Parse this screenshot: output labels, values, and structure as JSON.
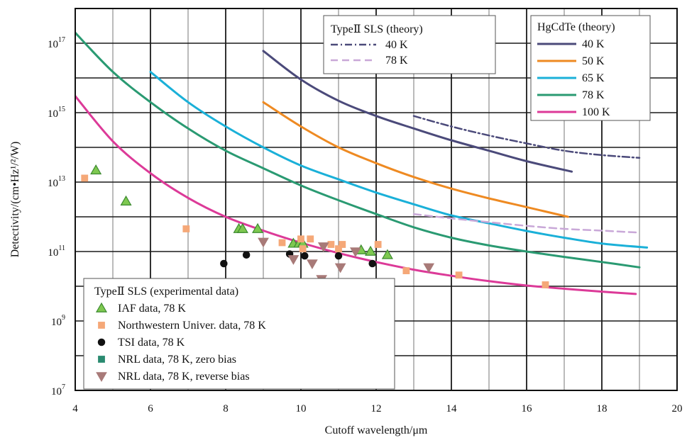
{
  "chart_data": {
    "type": "line",
    "xlabel": "Cutoff wavelength/μm",
    "ylabel": "Detectivity/(cm•Hz¹/²/W)",
    "xlim": [
      4,
      20
    ],
    "ylim": [
      10000000.0,
      1e+18
    ],
    "y_scale": "log",
    "x_ticks": [
      "4",
      "6",
      "8",
      "10",
      "12",
      "14",
      "16",
      "18",
      "20"
    ],
    "y_ticks": [
      {
        "base": "10",
        "exp": "7",
        "value": 10000000.0
      },
      {
        "base": "10",
        "exp": "9",
        "value": 1000000000.0
      },
      {
        "base": "10",
        "exp": "11",
        "value": 100000000000.0
      },
      {
        "base": "10",
        "exp": "13",
        "value": 10000000000000.0
      },
      {
        "base": "10",
        "exp": "15",
        "value": 1000000000000000.0
      },
      {
        "base": "10",
        "exp": "17",
        "value": 1e+17
      }
    ],
    "grid": true,
    "theory_series": [
      {
        "group": "HgCdTe (theory)",
        "name": "40 K",
        "color": "#4b4a7a",
        "dash": "",
        "x": [
          9.0,
          10.0,
          11.0,
          12.0,
          13.0,
          14.0,
          15.0,
          16.0,
          17.2
        ],
        "y": [
          6e+16,
          9000000000000000.0,
          2200000000000000.0,
          800000000000000.0,
          350000000000000.0,
          160000000000000.0,
          80000000000000.0,
          40000000000000.0,
          20000000000000.0
        ]
      },
      {
        "group": "HgCdTe (theory)",
        "name": "50 K",
        "color": "#ee8a22",
        "dash": "",
        "x": [
          9.0,
          10.0,
          11.0,
          12.0,
          13.0,
          14.0,
          15.0,
          16.0,
          17.1
        ],
        "y": [
          2000000000000000.0,
          400000000000000.0,
          100000000000000.0,
          35000000000000.0,
          14000000000000.0,
          6500000000000.0,
          3400000000000.0,
          1900000000000.0,
          1000000000000.0
        ]
      },
      {
        "group": "HgCdTe (theory)",
        "name": "65 K",
        "color": "#1ab0d8",
        "dash": "",
        "x": [
          6.0,
          7.0,
          8.0,
          9.0,
          10.0,
          11.0,
          12.0,
          13.0,
          14.0,
          15.0,
          16.0,
          17.0,
          18.0,
          19.2
        ],
        "y": [
          1.5e+16,
          2000000000000000.0,
          400000000000000.0,
          100000000000000.0,
          30000000000000.0,
          12000000000000.0,
          5000000000000.0,
          2300000000000.0,
          1100000000000.0,
          650000000000.0,
          390000000000.0,
          250000000000.0,
          170000000000.0,
          130000000000.0
        ]
      },
      {
        "group": "HgCdTe (theory)",
        "name": "78 K",
        "color": "#2a9a72",
        "dash": "",
        "x": [
          4.0,
          5.0,
          6.0,
          7.0,
          8.0,
          9.0,
          10.0,
          11.0,
          12.0,
          13.0,
          14.0,
          15.0,
          16.0,
          17.0,
          18.0,
          19.0
        ],
        "y": [
          2e+17,
          1.5e+16,
          2000000000000000.0,
          350000000000000.0,
          80000000000000.0,
          25000000000000.0,
          8000000000000.0,
          3000000000000.0,
          1200000000000.0,
          500000000000.0,
          250000000000.0,
          150000000000.0,
          100000000000.0,
          70000000000.0,
          50000000000.0,
          35000000000.0
        ]
      },
      {
        "group": "HgCdTe (theory)",
        "name": "100 K",
        "color": "#dc3a98",
        "dash": "",
        "x": [
          4.0,
          5.0,
          6.0,
          7.0,
          8.0,
          9.0,
          10.0,
          11.0,
          12.0,
          13.0,
          14.0,
          15.0,
          16.0,
          17.0,
          18.0,
          18.9
        ],
        "y": [
          3000000000000000.0,
          150000000000000.0,
          18000000000000.0,
          3500000000000.0,
          1000000000000.0,
          400000000000.0,
          180000000000.0,
          90000000000.0,
          50000000000.0,
          30000000000.0,
          20000000000.0,
          14000000000.0,
          10500000000.0,
          8500000000.0,
          7000000000.0,
          6000000000.0
        ]
      },
      {
        "group": "TypeⅡ SLS (theory)",
        "name": "40 K",
        "color": "#4b4a7a",
        "dash": "10,4,2,4",
        "x": [
          13.0,
          14.0,
          15.0,
          16.0,
          17.0,
          18.0,
          19.0
        ],
        "y": [
          800000000000000.0,
          400000000000000.0,
          220000000000000.0,
          130000000000000.0,
          80000000000000.0,
          60000000000000.0,
          50000000000000.0
        ]
      },
      {
        "group": "TypeⅡ SLS (theory)",
        "name": "78 K",
        "color": "#c9a8d8",
        "dash": "10,6",
        "x": [
          13.0,
          14.0,
          15.0,
          16.0,
          17.0,
          18.0,
          19.0
        ],
        "y": [
          1200000000000.0,
          900000000000.0,
          700000000000.0,
          550000000000.0,
          450000000000.0,
          400000000000.0,
          350000000000.0
        ]
      }
    ],
    "experimental_series": [
      {
        "name": "IAF data, 78 K",
        "marker": "triangle-up",
        "color": "#7ec850",
        "stroke": "#3c8a30",
        "x": [
          4.55,
          5.35,
          8.35,
          8.45,
          8.85,
          9.8,
          9.95,
          10.05,
          11.6,
          11.85,
          12.3
        ],
        "y": [
          22000000000000.0,
          2800000000000.0,
          450000000000.0,
          450000000000.0,
          450000000000.0,
          170000000000.0,
          170000000000.0,
          170000000000.0,
          110000000000.0,
          100000000000.0,
          80000000000.0
        ]
      },
      {
        "name": "Northwestern Univer. data, 78 K",
        "marker": "square",
        "color": "#f5a878",
        "stroke": "#f5a878",
        "x": [
          4.25,
          6.95,
          9.5,
          10.0,
          10.05,
          10.25,
          10.8,
          11.0,
          11.1,
          12.05,
          12.8,
          14.2,
          16.5
        ],
        "y": [
          13000000000000.0,
          450000000000.0,
          180000000000.0,
          230000000000.0,
          120000000000.0,
          230000000000.0,
          160000000000.0,
          120000000000.0,
          160000000000.0,
          160000000000.0,
          28000000000.0,
          21000000000.0,
          11000000000.0
        ]
      },
      {
        "name": "TSI data, 78 K",
        "marker": "circle",
        "color": "#111111",
        "stroke": "#111111",
        "x": [
          7.95,
          8.55,
          9.7,
          10.1,
          11.0,
          11.9
        ],
        "y": [
          45000000000.0,
          80000000000.0,
          85000000000.0,
          75000000000.0,
          75000000000.0,
          45000000000.0
        ]
      },
      {
        "name": "NRL data, 78 K, zero bias",
        "marker": "square",
        "color": "#2a8a70",
        "stroke": "#2a8a70",
        "x": [],
        "y": []
      },
      {
        "name": "NRL data, 78 K, reverse bias",
        "marker": "triangle-down",
        "color": "#a87a78",
        "stroke": "#a87a78",
        "x": [
          9.0,
          9.8,
          10.3,
          10.55,
          10.6,
          11.05,
          11.45,
          13.4
        ],
        "y": [
          190000000000.0,
          60000000000.0,
          45000000000.0,
          16000000000.0,
          140000000000.0,
          35000000000.0,
          100000000000.0,
          35000000000.0
        ]
      }
    ],
    "legends": {
      "sls_theory_title": "TypeⅡ SLS (theory)",
      "hgcdte_title": "HgCdTe (theory)",
      "experimental_title": "TypeⅡ SLS (experimental data)"
    }
  }
}
